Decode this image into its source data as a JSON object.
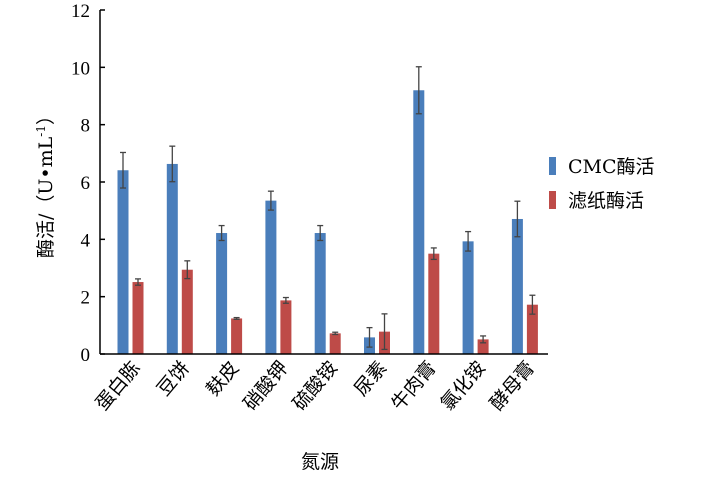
{
  "chart_data": {
    "type": "bar",
    "title": "",
    "xlabel": "氮源",
    "ylabel": "酶活/（U•mL",
    "ylabel_sup": "-1",
    "ylabel_end": "）",
    "ylim": [
      0,
      12
    ],
    "yticks": [
      0,
      2,
      4,
      6,
      8,
      10,
      12
    ],
    "ytick_labels": [
      "0",
      "2",
      "4",
      "6",
      "8",
      "10",
      "12"
    ],
    "grid": false,
    "legend_position": "right",
    "categories": [
      "蛋白胨",
      "豆饼",
      "麸皮",
      "硝酸钾",
      "硫酸铵",
      "尿素",
      "牛肉膏",
      "氯化铵",
      "酵母膏"
    ],
    "series": [
      {
        "name": "CMC酶活",
        "color": "#4a7ebb",
        "values": [
          6.41,
          6.63,
          4.22,
          5.35,
          4.22,
          0.58,
          9.2,
          3.93,
          4.71
        ],
        "errors": [
          0.62,
          0.62,
          0.26,
          0.33,
          0.26,
          0.34,
          0.82,
          0.34,
          0.62
        ]
      },
      {
        "name": "滤纸酶活",
        "color": "#be4b48",
        "values": [
          2.51,
          2.94,
          1.24,
          1.87,
          0.72,
          0.78,
          3.5,
          0.51,
          1.72
        ],
        "errors": [
          0.11,
          0.31,
          0.03,
          0.1,
          0.04,
          0.62,
          0.2,
          0.12,
          0.33
        ]
      }
    ]
  }
}
